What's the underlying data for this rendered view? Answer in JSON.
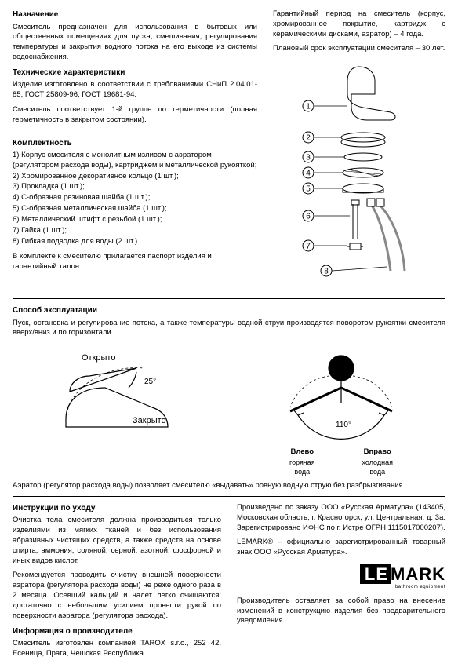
{
  "section1": {
    "heading_purpose": "Назначение",
    "purpose_text": "Смеситель предназначен для использования в бытовых или общественных помещениях для пуска, смешивания, регулирования температуры и закрытия водного потока на его выходе из системы водоснабжения.",
    "heading_tech": "Технические характеристики",
    "tech_text1": "Изделие изготовлено в соответствии с требованиями СНиП 2.04.01-85, ГОСТ 25809-96, ГОСТ 19681-94.",
    "tech_text2": "Смеситель соответствует 1-й группе по герметичности (полная герметичность в закрытом состоянии).",
    "heading_kit": "Комплектность",
    "kit_items": [
      "1) Корпус смесителя с монолитным изливом с аэратором (регулятором расхода воды), картриджем и металлической рукояткой;",
      "2) Хромированное декоративное кольцо (1 шт.);",
      "3) Прокладка (1 шт.);",
      "4) С-образная резиновая шайба (1 шт.);",
      "5) С-образная металлическая шайба (1 шт.);",
      "6) Металлический штифт с резьбой (1 шт.);",
      "7) Гайка (1 шт.);",
      "8) Гибкая подводка для воды (2 шт.)."
    ],
    "kit_footer": "В комплекте к смесителю прилагается паспорт изделия и гарантийный талон.",
    "warranty_text": "Гарантийный период на смеситель (корпус, хромированное покрытие, картридж с керамическими дисками, аэратор) – 4 года.",
    "lifetime_text": "Плановый срок эксплуатации смесителя – 30 лет."
  },
  "diagram1": {
    "labels": [
      "1",
      "2",
      "3",
      "4",
      "5",
      "6",
      "7",
      "8"
    ],
    "stroke": "#000000",
    "fill": "#ffffff",
    "circle_r": 7
  },
  "section2": {
    "heading": "Способ эксплуатации",
    "text": "Пуск, остановка и регулирование потока, а также температуры водной струи производятся поворотом рукоятки смесителя вверх/вниз и по горизонтали.",
    "aerator_text": "Аэратор (регулятор расхода воды) позволяет смесителю «выдавать» ровную водную струю без разбрызгивания."
  },
  "diagram2": {
    "open_label": "Открыто",
    "closed_label": "Закрыто",
    "angle": "25°",
    "left_label": "Влево",
    "right_label": "Вправо",
    "hot_label": "горячая\nвода",
    "cold_label": "холодная\nвода",
    "angle2": "110°",
    "stroke": "#000000"
  },
  "section3": {
    "heading_care": "Инструкции по уходу",
    "care_text1": "Очистка тела смесителя должна производиться только изделиями из мягких тканей и без использования абразивных чистящих средств, а также средств на основе спирта, аммония, соляной, серной, азотной, фосфорной и иных видов кислот.",
    "care_text2": "Рекомендуется проводить очистку внешней поверхности аэратора (регулятора расхода воды) не реже одного раза в 2 месяца. Осевший кальций и налет легко очищаются: достаточно с небольшим усилием провести рукой по поверхности аэратора (регулятора расхода).",
    "heading_mfr": "Информация о производителе",
    "mfr_text": "Смеситель изготовлен компанией TAROX s.r.o., 252 42, Есеница, Прага, Чешская Республика.",
    "order_text": "Произведено по заказу ООО «Русская Арматура» (143405, Московская область, г. Красногорск, ул. Центральная, д. 3а. Зарегистрировано ИФНС по г. Истре ОГРН 1115017000207).",
    "trademark_text": "LEMARK® – официально зарегистрированный товарный знак ООО «Русская Арматура».",
    "disclaimer": "Производитель оставляет за собой право на внесение изменений в конструкцию изделия без предварительного уведомления."
  },
  "logo": {
    "text": "LEMARK",
    "sub": "bathroom equipment"
  }
}
